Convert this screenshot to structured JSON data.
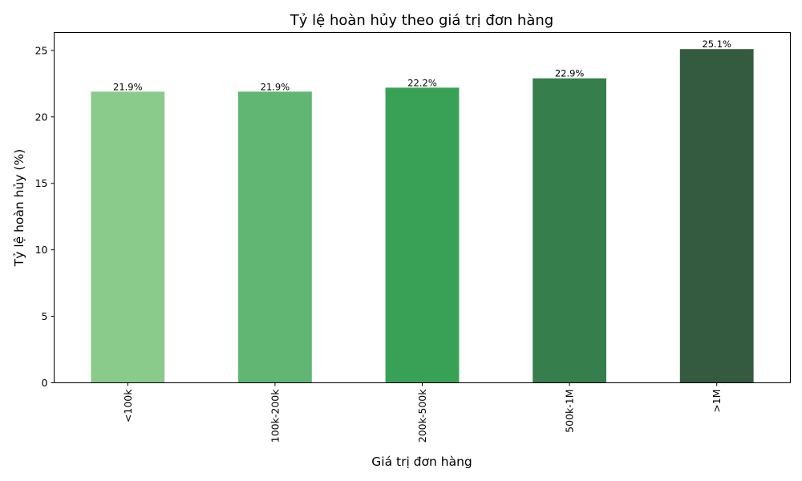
{
  "chart_data": {
    "type": "bar",
    "title": "Tỷ lệ hoàn hủy theo giá trị đơn hàng",
    "xlabel": "Giá trị đơn hàng",
    "ylabel": "Tỷ lệ hoàn hủy (%)",
    "categories": [
      "<100k",
      "100k-200k",
      "200k-500k",
      "500k-1M",
      ">1M"
    ],
    "values": [
      21.9,
      21.9,
      22.2,
      22.9,
      25.1
    ],
    "data_labels": [
      "21.9%",
      "21.9%",
      "22.2%",
      "22.9%",
      "25.1%"
    ],
    "colors": [
      "#8acb8c",
      "#60b672",
      "#39a156",
      "#367e4c",
      "#345a40"
    ],
    "ylim": [
      0,
      26.35
    ],
    "yticks": [
      0,
      5,
      10,
      15,
      20,
      25
    ],
    "ytick_labels": [
      "0",
      "5",
      "10",
      "15",
      "20",
      "25"
    ],
    "xtick_rotation": "vertical",
    "grid": false,
    "legend": "none"
  }
}
